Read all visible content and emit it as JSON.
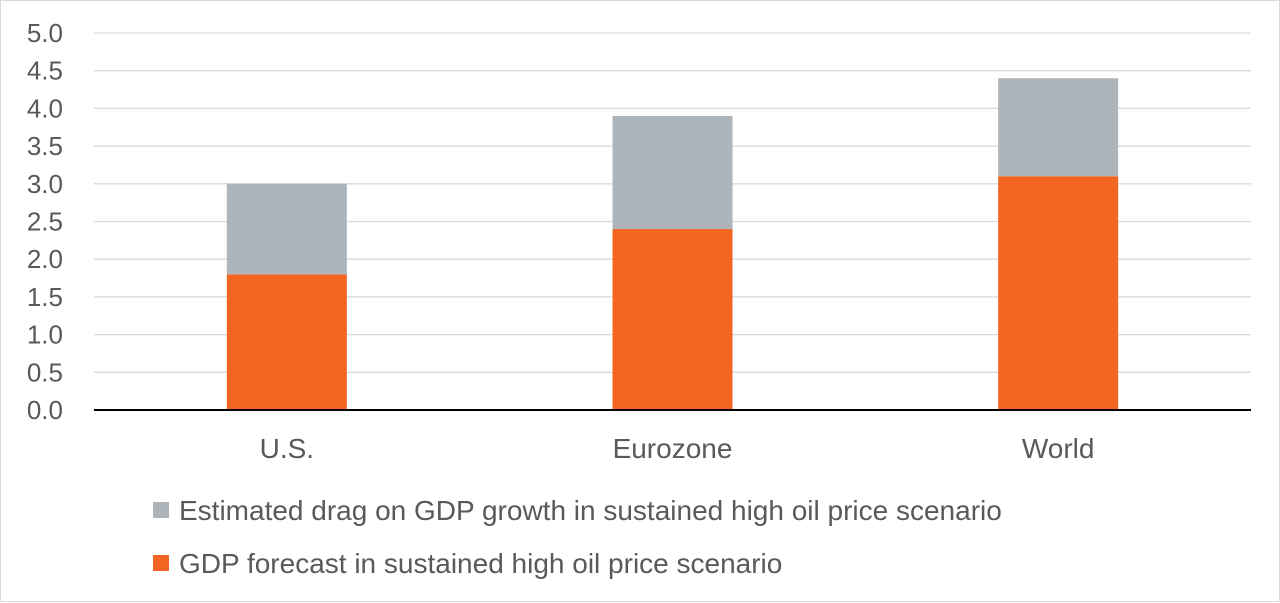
{
  "chart_data": {
    "type": "bar",
    "stacked": true,
    "categories": [
      "U.S.",
      "Eurozone",
      "World"
    ],
    "series": [
      {
        "name": "GDP forecast in sustained high oil price scenario",
        "values": [
          1.8,
          2.4,
          3.1
        ],
        "color": "#f26522"
      },
      {
        "name": "Estimated drag on GDP growth in sustained high oil price scenario",
        "values": [
          1.2,
          1.5,
          1.3
        ],
        "color": "#adb5ba"
      }
    ],
    "ylim": [
      0,
      5
    ],
    "yticks": [
      "0.0",
      "0.5",
      "1.0",
      "1.5",
      "2.0",
      "2.5",
      "3.0",
      "3.5",
      "4.0",
      "4.5",
      "5.0"
    ],
    "grid": true,
    "legend_position": "bottom",
    "legend_order": [
      1,
      0
    ]
  }
}
